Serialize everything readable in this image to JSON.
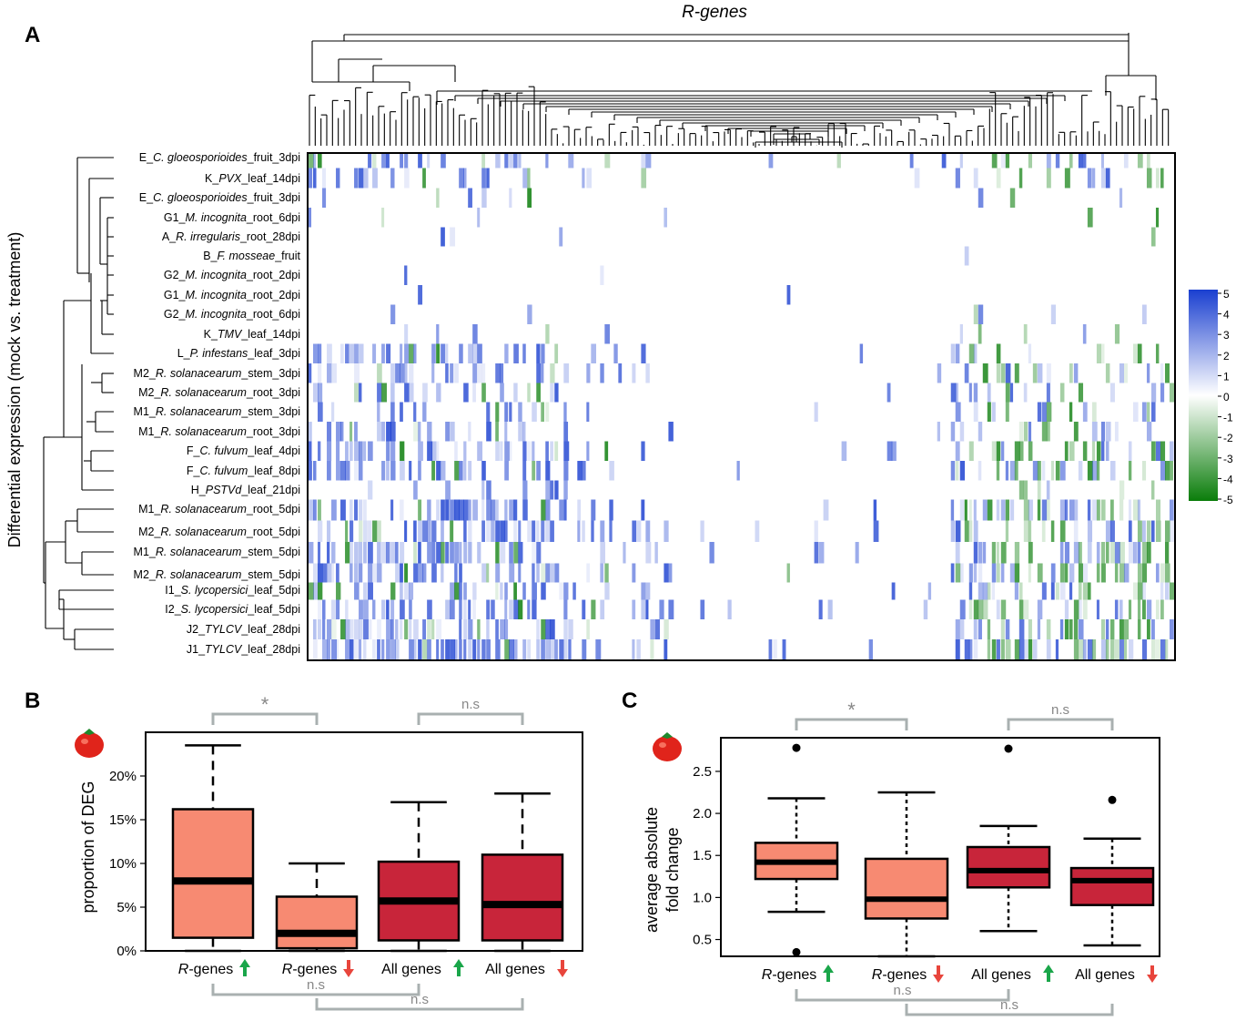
{
  "chart_data": [
    {
      "type": "heatmap",
      "panel": "A",
      "title": "R-genes",
      "ylabel": "Differential expression (mock vs. treatment)",
      "rows": [
        {
          "id": "E",
          "it": "C. gloeosporioides",
          "rest": "_fruit_3dpi"
        },
        {
          "id": "K",
          "it": "PVX",
          "rest": "_leaf_14dpi"
        },
        {
          "id": "E",
          "it": "C. gloeosporioides",
          "rest": "_fruit_3dpi"
        },
        {
          "id": "G1",
          "it": "M. incognita",
          "rest": "_root_6dpi"
        },
        {
          "id": "A",
          "it": "R. irregularis",
          "rest": "_root_28dpi"
        },
        {
          "id": "B",
          "it": "F. mosseae",
          "rest": "_fruit"
        },
        {
          "id": "G2",
          "it": "M. incognita",
          "rest": "_root_2dpi"
        },
        {
          "id": "G1",
          "it": "M. incognita",
          "rest": "_root_2dpi"
        },
        {
          "id": "G2",
          "it": "M. incognita",
          "rest": "_root_6dpi"
        },
        {
          "id": "K",
          "it": "TMV",
          "rest": "_leaf_14dpi"
        },
        {
          "id": "L",
          "it": "P. infestans",
          "rest": "_leaf_3dpi"
        },
        {
          "id": "M2",
          "it": "R. solanacearum",
          "rest": "_stem_3dpi"
        },
        {
          "id": "M2",
          "it": "R. solanacearum",
          "rest": "_root_3dpi"
        },
        {
          "id": "M1",
          "it": "R. solanacearum",
          "rest": "_stem_3dpi"
        },
        {
          "id": "M1",
          "it": "R. solanacearum",
          "rest": "_root_3dpi"
        },
        {
          "id": "F",
          "it": "C. fulvum",
          "rest": "_leaf_4dpi"
        },
        {
          "id": "F",
          "it": "C. fulvum",
          "rest": "_leaf_8dpi"
        },
        {
          "id": "H",
          "it": "PSTVd",
          "rest": "_leaf_21dpi"
        },
        {
          "id": "M1",
          "it": "R. solanacearum",
          "rest": "_root_5dpi"
        },
        {
          "id": "M2",
          "it": "R. solanacearum",
          "rest": "_root_5dpi"
        },
        {
          "id": "M1",
          "it": "R. solanacearum",
          "rest": "_stem_5dpi"
        },
        {
          "id": "M2",
          "it": "R. solanacearum",
          "rest": "_stem_5dpi"
        },
        {
          "id": "I1",
          "it": "S. lycopersici",
          "rest": "_leaf_5dpi"
        },
        {
          "id": "I2",
          "it": "S. lycopersici",
          "rest": "_leaf_5dpi"
        },
        {
          "id": "J2",
          "it": "TYLCV",
          "rest": "_leaf_28dpi"
        },
        {
          "id": "J1",
          "it": "TYLCV",
          "rest": "_leaf_28dpi"
        }
      ],
      "colorscale": {
        "min": -5,
        "max": 5,
        "low": "#0a7d0a",
        "mid": "#ffffff",
        "high": "#1a3fd0",
        "ticks": [
          "5",
          "4",
          "3",
          "2",
          "1",
          "0",
          "-1",
          "-2",
          "-3",
          "-4",
          "-5"
        ]
      },
      "row_activity": [
        0.35,
        0.25,
        0.05,
        0.04,
        0.03,
        0.01,
        0.01,
        0.01,
        0.06,
        0.07,
        0.35,
        0.4,
        0.35,
        0.3,
        0.4,
        0.55,
        0.55,
        0.15,
        0.6,
        0.62,
        0.62,
        0.62,
        0.5,
        0.52,
        0.65,
        0.68
      ]
    },
    {
      "type": "box",
      "panel": "B",
      "ylabel": "proportion of DEG",
      "yticks": [
        "0%",
        "5%",
        "10%",
        "15%",
        "20%"
      ],
      "ylim": [
        0,
        25
      ],
      "categories": [
        {
          "name": "R-genes",
          "italic": true,
          "dir": "up"
        },
        {
          "name": "R-genes",
          "italic": true,
          "dir": "down"
        },
        {
          "name": "All genes",
          "italic": false,
          "dir": "up"
        },
        {
          "name": "All genes",
          "italic": false,
          "dir": "down"
        }
      ],
      "boxes": [
        {
          "min": 0,
          "q1": 1.5,
          "median": 8,
          "q3": 16.2,
          "max": 23.5,
          "color": "#f78a72"
        },
        {
          "min": 0,
          "q1": 0.3,
          "median": 2,
          "q3": 6.2,
          "max": 10,
          "color": "#f78a72"
        },
        {
          "min": 0,
          "q1": 1.2,
          "median": 5.7,
          "q3": 10.2,
          "max": 17,
          "color": "#c8253a"
        },
        {
          "min": 0,
          "q1": 1.2,
          "median": 5.3,
          "q3": 11,
          "max": 18,
          "color": "#c8253a"
        }
      ],
      "significance": {
        "top_left": "*",
        "top_right": "n.s",
        "bottom_1": "n.s",
        "bottom_2": "n.s"
      }
    },
    {
      "type": "box",
      "panel": "C",
      "ylabel": "average absolute fold change",
      "yticks": [
        "0.5",
        "1.0",
        "1.5",
        "2.0",
        "2.5"
      ],
      "ylim": [
        0.3,
        2.9
      ],
      "categories": [
        {
          "name": "R-genes",
          "italic": true,
          "dir": "up"
        },
        {
          "name": "R-genes",
          "italic": true,
          "dir": "down"
        },
        {
          "name": "All genes",
          "italic": false,
          "dir": "up"
        },
        {
          "name": "All genes",
          "italic": false,
          "dir": "down"
        }
      ],
      "boxes": [
        {
          "min": 0.83,
          "q1": 1.22,
          "median": 1.42,
          "q3": 1.65,
          "max": 2.18,
          "outliers": [
            2.78,
            0.35
          ],
          "color": "#f78a72"
        },
        {
          "min": 0.3,
          "q1": 0.75,
          "median": 0.98,
          "q3": 1.46,
          "max": 2.25,
          "outliers": [],
          "color": "#f78a72"
        },
        {
          "min": 0.6,
          "q1": 1.12,
          "median": 1.32,
          "q3": 1.6,
          "max": 1.85,
          "outliers": [
            2.77
          ],
          "color": "#c8253a"
        },
        {
          "min": 0.43,
          "q1": 0.91,
          "median": 1.2,
          "q3": 1.35,
          "max": 1.7,
          "outliers": [
            2.16
          ],
          "color": "#c8253a"
        }
      ],
      "significance": {
        "top_left": "*",
        "top_right": "n.s",
        "bottom_1": "n.s",
        "bottom_2": "n.s"
      }
    }
  ],
  "panel_labels": {
    "a": "A",
    "b": "B",
    "c": "C"
  },
  "arrow_colors": {
    "up": "#1aa64a",
    "down": "#e8453c"
  },
  "bracket_color": "#a9b0b0"
}
